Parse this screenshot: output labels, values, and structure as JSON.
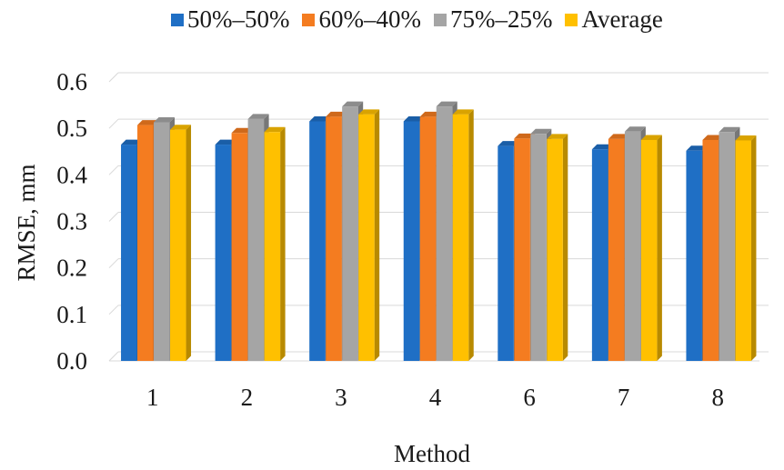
{
  "chart_data": {
    "type": "bar",
    "xlabel": "Method",
    "ylabel": "RMSE, mm",
    "ylim": [
      0,
      0.6
    ],
    "yticks": [
      "0.0",
      "0.1",
      "0.2",
      "0.3",
      "0.4",
      "0.5",
      "0.6"
    ],
    "grid": true,
    "legend_position": "top",
    "categories": [
      "1",
      "2",
      "3",
      "4",
      "6",
      "7",
      "8"
    ],
    "series": [
      {
        "name": "50%–50%",
        "color": "#1f6fc5",
        "values": [
          0.465,
          0.465,
          0.515,
          0.515,
          0.462,
          0.455,
          0.452
        ]
      },
      {
        "name": "60%–40%",
        "color": "#f47c20",
        "values": [
          0.507,
          0.49,
          0.525,
          0.525,
          0.478,
          0.477,
          0.475
        ]
      },
      {
        "name": "75%–25%",
        "color": "#a5a5a5",
        "values": [
          0.513,
          0.52,
          0.547,
          0.547,
          0.488,
          0.493,
          0.492
        ]
      },
      {
        "name": "Average",
        "color": "#ffc000",
        "values": [
          0.497,
          0.492,
          0.53,
          0.53,
          0.477,
          0.475,
          0.474
        ]
      }
    ]
  }
}
